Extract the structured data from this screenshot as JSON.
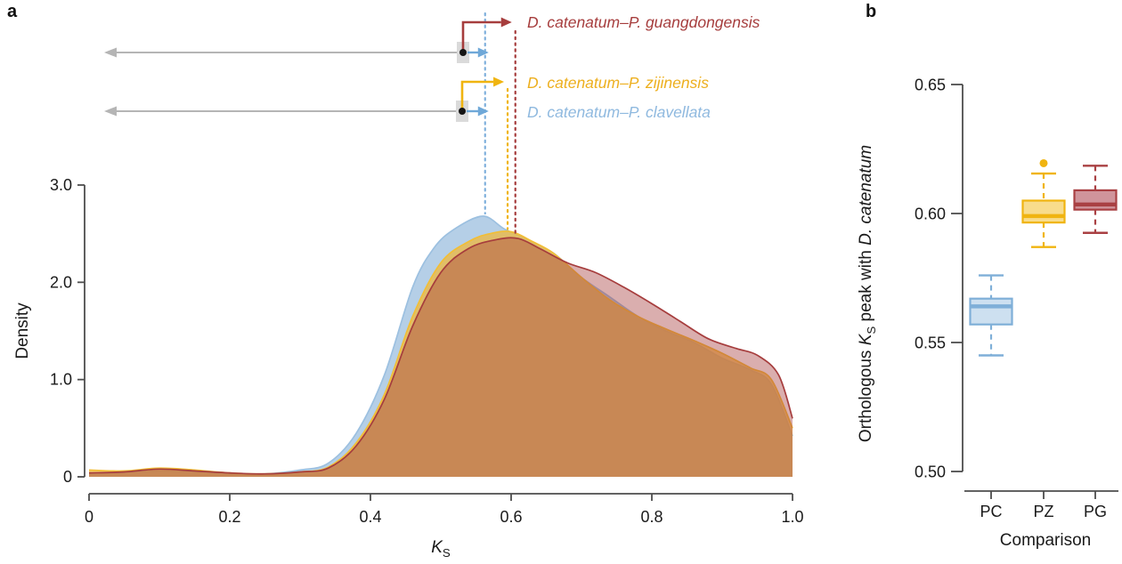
{
  "panel_a": {
    "letter": "a",
    "ylabel": "Density",
    "xlabel_main": "K",
    "xlabel_sub": "S",
    "legend": [
      {
        "label": "D. catenatum–P. guangdongensis",
        "color": "#A63D3D"
      },
      {
        "label": "D. catenatum–P. zijinensis",
        "color": "#EDAF1E"
      },
      {
        "label": "D. catenatum–P. clavellata",
        "color": "#8FB9DF"
      }
    ]
  },
  "panel_b": {
    "letter": "b",
    "ylabel_prefix": "Orthologous ",
    "ylabel_k": "K",
    "ylabel_k_sub": "S",
    "ylabel_suffix": " peak with ",
    "ylabel_species": "D. catenatum",
    "xlabel": "Comparison"
  },
  "colors": {
    "axis": "#4d4d4d",
    "gray_arrow": "#b5b5b5",
    "node_square": "#dadada",
    "node_dot": "#151515",
    "blue_arrow": "#6fa8d8"
  },
  "chart_data": [
    {
      "id": "ks-density-plot",
      "type": "area",
      "title": "",
      "xlabel": "K_S",
      "ylabel": "Density",
      "xlim": [
        0,
        1.0
      ],
      "ylim": [
        0,
        3.0
      ],
      "grid": false,
      "x_tick_values": [
        0,
        0.2,
        0.4,
        0.6,
        0.8,
        1.0
      ],
      "x_tick_labels": [
        "0",
        "0.2",
        "0.4",
        "0.6",
        "0.8",
        "1.0"
      ],
      "y_tick_values": [
        0,
        1.0,
        2.0,
        3.0
      ],
      "y_tick_labels": [
        "0",
        "1.0",
        "2.0",
        "3.0"
      ],
      "series": [
        {
          "name": "D. catenatum–P. clavellata",
          "abbr": "PC",
          "stroke": "#9CC0E0",
          "fill": "rgba(168,199,227,0.85)",
          "dotted": "#7FB0DC",
          "peak_ks": 0.563,
          "points": [
            [
              0,
              0.03
            ],
            [
              0.05,
              0.04
            ],
            [
              0.1,
              0.06
            ],
            [
              0.15,
              0.05
            ],
            [
              0.2,
              0.03
            ],
            [
              0.25,
              0.03
            ],
            [
              0.3,
              0.07
            ],
            [
              0.34,
              0.14
            ],
            [
              0.38,
              0.45
            ],
            [
              0.42,
              1.05
            ],
            [
              0.46,
              1.95
            ],
            [
              0.49,
              2.35
            ],
            [
              0.52,
              2.55
            ],
            [
              0.56,
              2.68
            ],
            [
              0.59,
              2.55
            ],
            [
              0.62,
              2.45
            ],
            [
              0.66,
              2.3
            ],
            [
              0.7,
              2.05
            ],
            [
              0.74,
              1.85
            ],
            [
              0.78,
              1.65
            ],
            [
              0.82,
              1.5
            ],
            [
              0.86,
              1.38
            ],
            [
              0.9,
              1.22
            ],
            [
              0.94,
              1.1
            ],
            [
              0.97,
              0.95
            ],
            [
              1.0,
              0.42
            ]
          ]
        },
        {
          "name": "D. catenatum–P. zijinensis",
          "abbr": "PZ",
          "stroke": "#F2BE35",
          "fill": "rgba(240,184,60,0.75)",
          "dotted": "#F0B410",
          "peak_ks": 0.595,
          "points": [
            [
              0,
              0.07
            ],
            [
              0.05,
              0.06
            ],
            [
              0.1,
              0.09
            ],
            [
              0.15,
              0.07
            ],
            [
              0.2,
              0.04
            ],
            [
              0.25,
              0.03
            ],
            [
              0.3,
              0.05
            ],
            [
              0.34,
              0.1
            ],
            [
              0.38,
              0.35
            ],
            [
              0.42,
              0.85
            ],
            [
              0.46,
              1.65
            ],
            [
              0.5,
              2.2
            ],
            [
              0.54,
              2.42
            ],
            [
              0.57,
              2.5
            ],
            [
              0.6,
              2.52
            ],
            [
              0.63,
              2.42
            ],
            [
              0.66,
              2.3
            ],
            [
              0.7,
              2.05
            ],
            [
              0.74,
              1.82
            ],
            [
              0.78,
              1.65
            ],
            [
              0.82,
              1.52
            ],
            [
              0.86,
              1.4
            ],
            [
              0.9,
              1.27
            ],
            [
              0.94,
              1.12
            ],
            [
              0.97,
              1.0
            ],
            [
              1.0,
              0.5
            ]
          ]
        },
        {
          "name": "D. catenatum–P. guangdongensis",
          "abbr": "PG",
          "stroke": "#A63D3D",
          "fill": "rgba(166,61,61,0.42)",
          "dotted": "#A63D3D",
          "peak_ks": 0.606,
          "points": [
            [
              0,
              0.04
            ],
            [
              0.05,
              0.05
            ],
            [
              0.1,
              0.08
            ],
            [
              0.15,
              0.06
            ],
            [
              0.2,
              0.04
            ],
            [
              0.25,
              0.03
            ],
            [
              0.3,
              0.05
            ],
            [
              0.34,
              0.09
            ],
            [
              0.38,
              0.32
            ],
            [
              0.42,
              0.8
            ],
            [
              0.46,
              1.55
            ],
            [
              0.5,
              2.1
            ],
            [
              0.54,
              2.35
            ],
            [
              0.58,
              2.44
            ],
            [
              0.61,
              2.45
            ],
            [
              0.64,
              2.35
            ],
            [
              0.68,
              2.2
            ],
            [
              0.72,
              2.1
            ],
            [
              0.76,
              1.95
            ],
            [
              0.8,
              1.78
            ],
            [
              0.84,
              1.6
            ],
            [
              0.88,
              1.42
            ],
            [
              0.92,
              1.32
            ],
            [
              0.95,
              1.25
            ],
            [
              0.98,
              1.05
            ],
            [
              1.0,
              0.6
            ]
          ]
        }
      ]
    },
    {
      "id": "ks-peak-boxplot",
      "type": "boxplot",
      "title": "",
      "xlabel": "Comparison",
      "ylabel": "Orthologous K_S peak with D. catenatum",
      "ylim": [
        0.5,
        0.65
      ],
      "grid": false,
      "y_tick_values": [
        0.5,
        0.55,
        0.6,
        0.65
      ],
      "y_tick_labels": [
        "0.50",
        "0.55",
        "0.60",
        "0.65"
      ],
      "categories": [
        "PC",
        "PZ",
        "PG"
      ],
      "boxes": [
        {
          "category": "PC",
          "whisker_low": 0.545,
          "q1": 0.557,
          "median": 0.564,
          "q3": 0.567,
          "whisker_high": 0.576,
          "outliers": [],
          "stroke": "#7FAFD8",
          "fill": "#CDE0F0"
        },
        {
          "category": "PZ",
          "whisker_low": 0.587,
          "q1": 0.5965,
          "median": 0.599,
          "q3": 0.605,
          "whisker_high": 0.6155,
          "outliers": [
            0.6195
          ],
          "stroke": "#F0B410",
          "fill": "#F8DC8C"
        },
        {
          "category": "PG",
          "whisker_low": 0.5925,
          "q1": 0.6015,
          "median": 0.6035,
          "q3": 0.609,
          "whisker_high": 0.6185,
          "outliers": [],
          "stroke": "#A94043",
          "fill": "#D0949B"
        }
      ]
    }
  ]
}
